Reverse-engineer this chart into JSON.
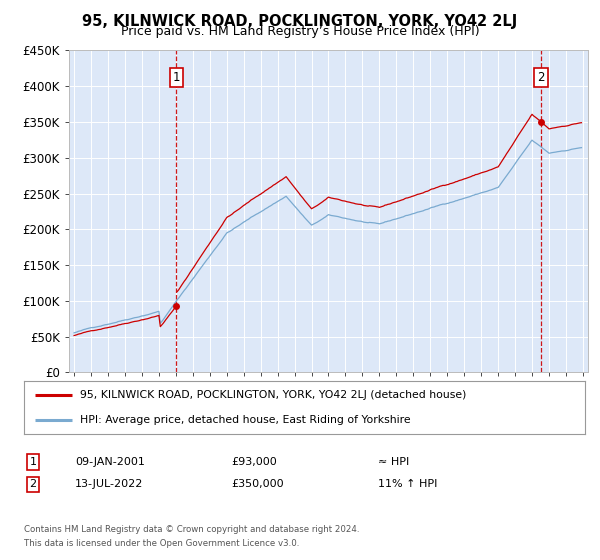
{
  "title": "95, KILNWICK ROAD, POCKLINGTON, YORK, YO42 2LJ",
  "subtitle": "Price paid vs. HM Land Registry’s House Price Index (HPI)",
  "hpi_label": "HPI: Average price, detached house, East Riding of Yorkshire",
  "price_label": "95, KILNWICK ROAD, POCKLINGTON, YORK, YO42 2LJ (detached house)",
  "point1_date": "09-JAN-2001",
  "point1_price": 93000,
  "point1_x": 2001.03,
  "point2_date": "13-JUL-2022",
  "point2_price": 350000,
  "point2_x": 2022.54,
  "point1_note": "≈ HPI",
  "point2_note": "11% ↑ HPI",
  "footer1": "Contains HM Land Registry data © Crown copyright and database right 2024.",
  "footer2": "This data is licensed under the Open Government Licence v3.0.",
  "ylim": [
    0,
    450000
  ],
  "yticks": [
    0,
    50000,
    100000,
    150000,
    200000,
    250000,
    300000,
    350000,
    400000,
    450000
  ],
  "xmin": 1994.7,
  "xmax": 2025.3,
  "bg_color": "#dde8f8",
  "line_color_hpi": "#7aaad0",
  "line_color_price": "#cc0000",
  "marker_color": "#cc0000",
  "dashed_color": "#cc0000",
  "box_color": "#cc0000"
}
